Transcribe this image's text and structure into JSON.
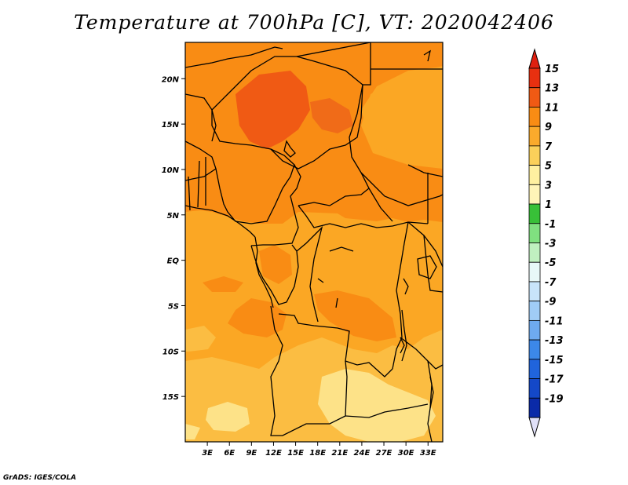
{
  "title": "Temperature at 700hPa [C], VT: 2020042406",
  "credit": "GrADS: IGES/COLA",
  "map": {
    "region": "Central Africa",
    "lon_range": [
      0,
      35
    ],
    "lat_range": [
      -20,
      24
    ],
    "lat_ticks": [
      {
        "value": 20,
        "label": "20N"
      },
      {
        "value": 15,
        "label": "15N"
      },
      {
        "value": 10,
        "label": "10N"
      },
      {
        "value": 5,
        "label": "5N"
      },
      {
        "value": 0,
        "label": "EQ"
      },
      {
        "value": -5,
        "label": "5S"
      },
      {
        "value": -10,
        "label": "10S"
      },
      {
        "value": -15,
        "label": "15S"
      }
    ],
    "lon_ticks": [
      {
        "value": 3,
        "label": "3E"
      },
      {
        "value": 6,
        "label": "6E"
      },
      {
        "value": 9,
        "label": "9E"
      },
      {
        "value": 12,
        "label": "12E"
      },
      {
        "value": 15,
        "label": "15E"
      },
      {
        "value": 18,
        "label": "18E"
      },
      {
        "value": 21,
        "label": "21E"
      },
      {
        "value": 24,
        "label": "24E"
      },
      {
        "value": 27,
        "label": "27E"
      },
      {
        "value": 30,
        "label": "30E"
      },
      {
        "value": 33,
        "label": "33E"
      }
    ]
  },
  "colorbar": {
    "labels": [
      "15",
      "13",
      "11",
      "9",
      "7",
      "5",
      "3",
      "1",
      "-1",
      "-3",
      "-5",
      "-7",
      "-9",
      "-11",
      "-13",
      "-15",
      "-17",
      "-19"
    ],
    "colors": [
      "#e83010",
      "#f05a14",
      "#f98c14",
      "#fbaa2c",
      "#fbd05a",
      "#fff0a0",
      "#fff4b8",
      "#38c038",
      "#80e080",
      "#c0f0c0",
      "#e8f8f8",
      "#c8e4fa",
      "#a0ccf6",
      "#6eaaf0",
      "#3c88e8",
      "#2064dc",
      "#1448c8",
      "#0a2aa8",
      "#0a148c"
    ],
    "top_arrow_color": "#e02010",
    "bottom_arrow_color": "#e0e0f8"
  },
  "field_colors": {
    "c9": "#fba724",
    "c11": "#f98c14",
    "c13": "#f05a14",
    "c13b": "#f06b18",
    "c7": "#fbbd42",
    "c5": "#fde288"
  }
}
